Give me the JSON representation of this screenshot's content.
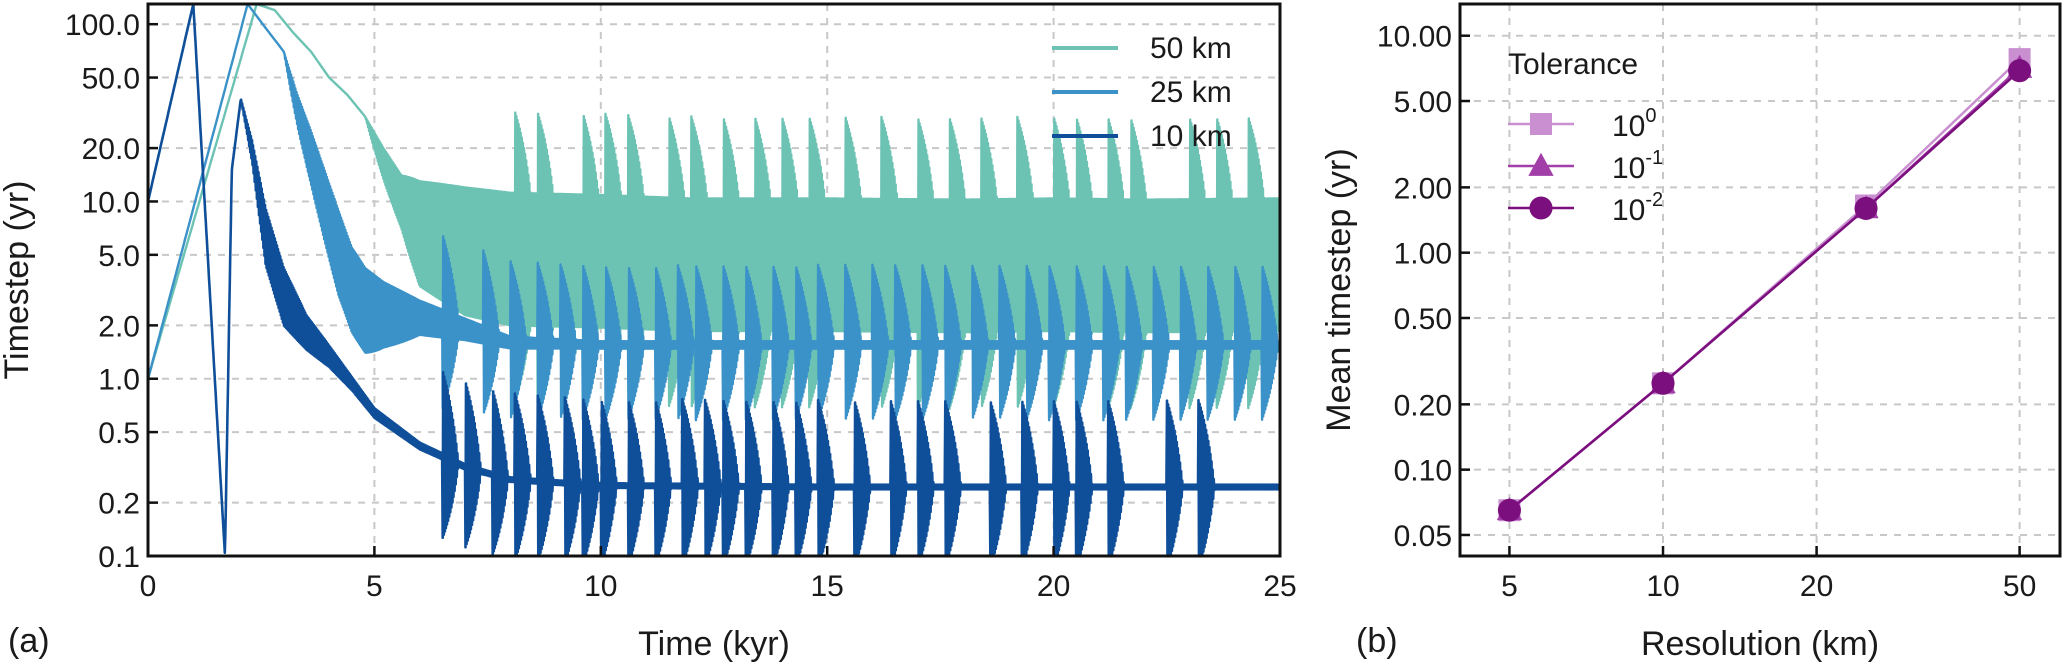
{
  "chart_data": [
    {
      "panel_label": "(a)",
      "type": "line",
      "xlabel": "Time (kyr)",
      "ylabel": "Timestep (yr)",
      "xlim": [
        0,
        25
      ],
      "ylim": [
        0.1,
        130
      ],
      "y_scale": "log",
      "grid": true,
      "legend_position": "top-right",
      "x_ticks": [
        "0",
        "5",
        "10",
        "15",
        "20",
        "25"
      ],
      "x_tick_values": [
        0,
        5,
        10,
        15,
        20,
        25
      ],
      "y_ticks": [
        "0.1",
        "0.2",
        "0.5",
        "1.0",
        "2.0",
        "5.0",
        "10.0",
        "20.0",
        "50.0",
        "100.0"
      ],
      "y_tick_values": [
        0.1,
        0.2,
        0.5,
        1,
        2,
        5,
        10,
        20,
        50,
        100
      ],
      "series": [
        {
          "name": "50 km",
          "color": "#6cc3b3",
          "x": [
            0,
            2.4,
            2.8,
            3.2,
            3.6,
            4.0,
            4.4,
            4.8,
            5.2,
            5.6,
            6.0,
            7,
            8,
            10,
            12,
            15,
            18,
            20,
            22,
            25
          ],
          "y": [
            0,
            130,
            120,
            90,
            70,
            50,
            40,
            30,
            20,
            14,
            10,
            8,
            7,
            6.8,
            6.5,
            6.5,
            6.4,
            6.5,
            6.4,
            6.5
          ],
          "spread_low": [
            1,
            1,
            1,
            1,
            1,
            1,
            1,
            1,
            1.5,
            2,
            3,
            3.5,
            3.5,
            3.5,
            3.5,
            3.5,
            3.5,
            3.5,
            3.5,
            3.5
          ],
          "spread_high": [
            1,
            1,
            1,
            1,
            1,
            1,
            1,
            1,
            1,
            1,
            1.3,
            1.5,
            1.6,
            1.6,
            1.6,
            1.6,
            1.6,
            1.6,
            1.6,
            1.6
          ],
          "spike_times": [
            8.1,
            8.6,
            9.6,
            10.1,
            10.6,
            11.5,
            12.0,
            12.7,
            13.4,
            14.0,
            14.6,
            15.4,
            16.2,
            17.0,
            17.7,
            18.4,
            19.2,
            20.0,
            20.5,
            21.2,
            21.7,
            23.0,
            23.6,
            24.3
          ]
        },
        {
          "name": "25 km",
          "color": "#3b92c8",
          "x": [
            0,
            2.2,
            2.6,
            3.0,
            3.3,
            3.6,
            3.9,
            4.2,
            4.5,
            4.8,
            5.2,
            6,
            7,
            8,
            10,
            15,
            20,
            25
          ],
          "y": [
            0,
            130,
            95,
            70,
            40,
            25,
            15,
            9,
            5.5,
            3.5,
            2.7,
            2.3,
            1.9,
            1.6,
            1.55,
            1.55,
            1.55,
            1.55
          ],
          "spread_low": [
            1,
            1,
            1,
            1,
            1.5,
            2,
            2.5,
            3,
            3,
            2.5,
            1.8,
            1.3,
            1.15,
            1.08,
            1.05,
            1.05,
            1.05,
            1.05
          ],
          "spread_high": [
            1,
            1,
            1,
            1,
            1,
            1,
            1,
            1,
            1,
            1.2,
            1.3,
            1.2,
            1.15,
            1.08,
            1.05,
            1.05,
            1.05,
            1.05
          ],
          "spike_times": [
            6.5,
            7.4,
            8.0,
            8.6,
            9.1,
            9.6,
            10.1,
            10.6,
            11.2,
            11.7,
            12.1,
            12.7,
            13.2,
            13.8,
            14.3,
            14.8,
            15.4,
            16.0,
            16.5,
            17.1,
            17.6,
            18.2,
            18.8,
            19.4,
            19.9,
            20.5,
            21.1,
            21.6,
            22.2,
            22.8,
            23.4,
            24.0,
            24.6
          ]
        },
        {
          "name": "10 km",
          "color": "#0f4f9a",
          "x": [
            0,
            1.0,
            1.7,
            1.85,
            2.05,
            2.3,
            2.6,
            3.0,
            3.5,
            4.0,
            4.5,
            5,
            6,
            7,
            8,
            10,
            15,
            20,
            25
          ],
          "y": [
            0,
            130,
            0.1,
            15,
            38,
            20,
            7,
            3,
            1.9,
            1.4,
            0.95,
            0.65,
            0.42,
            0.32,
            0.27,
            0.25,
            0.245,
            0.245,
            0.245
          ],
          "spread_low": [
            1,
            1,
            1,
            1,
            1,
            1.2,
            1.6,
            1.5,
            1.3,
            1.2,
            1.1,
            1.08,
            1.05,
            1.04,
            1.03,
            1.03,
            1.03,
            1.03,
            1.03
          ],
          "spread_high": [
            1,
            1,
            1,
            1,
            1,
            1.1,
            1.3,
            1.4,
            1.2,
            1.1,
            1.08,
            1.05,
            1.04,
            1.03,
            1.03,
            1.03,
            1.03,
            1.03,
            1.03
          ],
          "spike_times": [
            6.5,
            7.0,
            7.6,
            8.1,
            8.6,
            9.2,
            9.6,
            10.0,
            10.6,
            11.2,
            11.8,
            12.3,
            12.7,
            13.2,
            13.8,
            14.3,
            14.8,
            15.6,
            16.4,
            17.0,
            17.6,
            18.6,
            19.3,
            20.0,
            20.5,
            21.2,
            22.5,
            23.2
          ]
        }
      ]
    },
    {
      "panel_label": "(b)",
      "type": "line",
      "xlabel": "Resolution (km)",
      "ylabel": "Mean timestep (yr)",
      "x_scale": "log",
      "y_scale": "log",
      "xlim": [
        4,
        60
      ],
      "ylim": [
        0.04,
        14
      ],
      "grid": true,
      "legend_title": "Tolerance",
      "legend_position": "top-left",
      "x_ticks": [
        "5",
        "10",
        "20",
        "50"
      ],
      "x_tick_values": [
        5,
        10,
        20,
        50
      ],
      "y_ticks": [
        "0.05",
        "0.10",
        "0.20",
        "0.50",
        "1.00",
        "2.00",
        "5.00",
        "10.00"
      ],
      "y_tick_values": [
        0.05,
        0.1,
        0.2,
        0.5,
        1,
        2,
        5,
        10
      ],
      "x": [
        5,
        10,
        25,
        50
      ],
      "series": [
        {
          "name_base": "10",
          "name_exp": "0",
          "marker": "square",
          "color": "#c98fd0",
          "values": [
            0.065,
            0.25,
            1.65,
            7.8
          ]
        },
        {
          "name_base": "10",
          "name_exp": "-1",
          "marker": "triangle",
          "color": "#a23ea8",
          "values": [
            0.065,
            0.25,
            1.6,
            7.1
          ]
        },
        {
          "name_base": "10",
          "name_exp": "-2",
          "marker": "circle",
          "color": "#7b0f7d",
          "values": [
            0.065,
            0.25,
            1.6,
            6.9
          ]
        }
      ]
    }
  ]
}
